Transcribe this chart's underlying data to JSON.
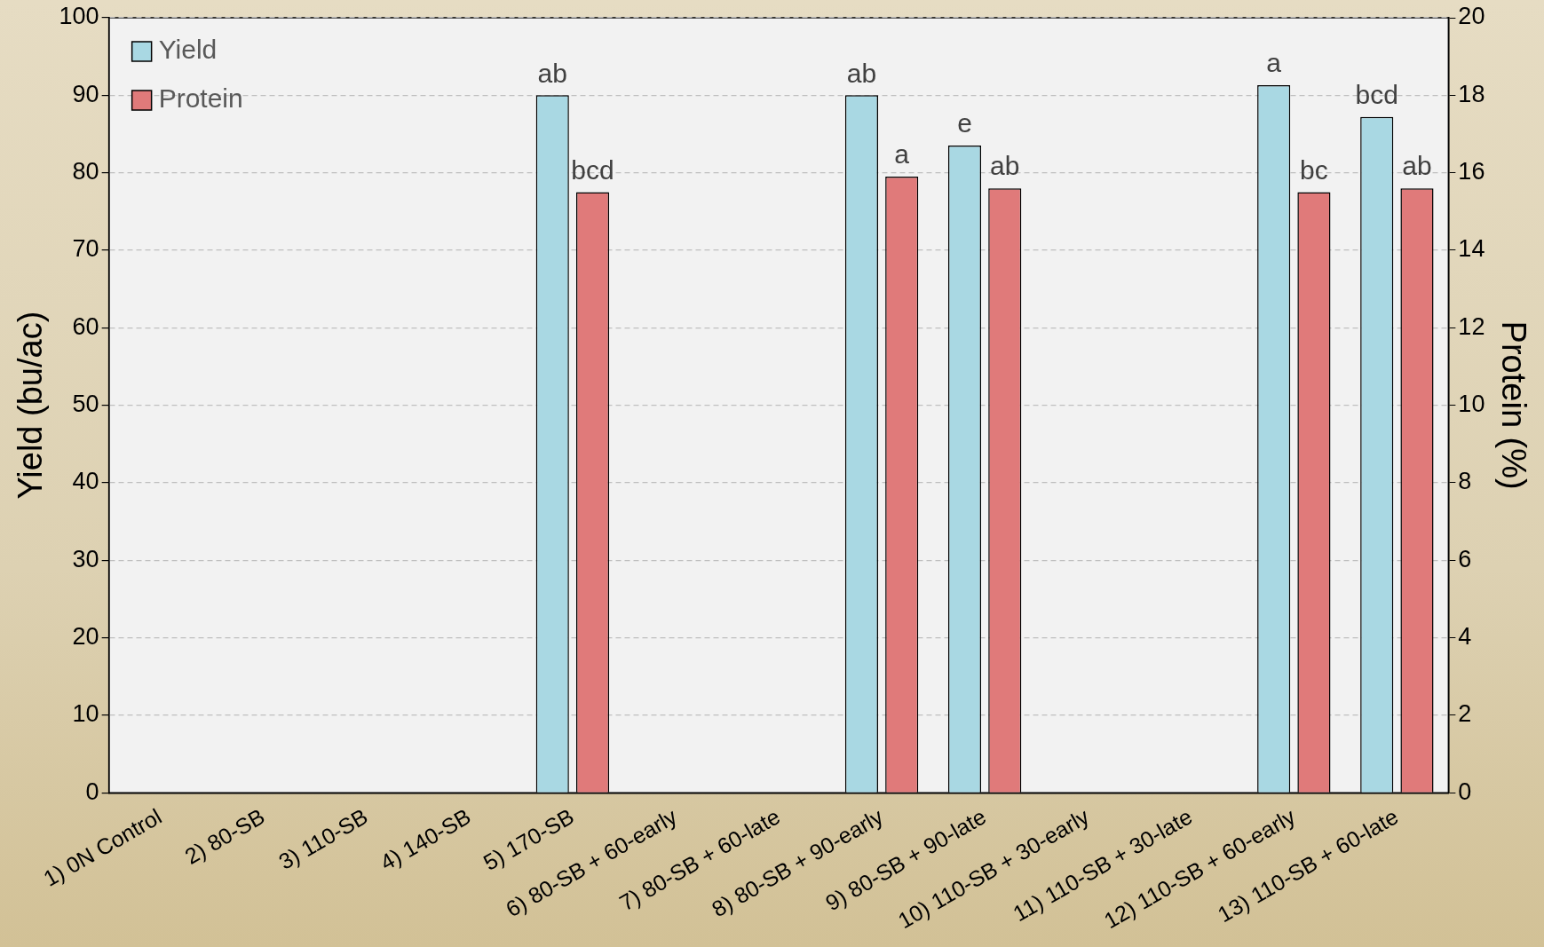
{
  "chart_data": {
    "type": "bar",
    "categories": [
      "1) 0N Control",
      "2) 80-SB",
      "3) 110-SB",
      "4) 140-SB",
      "5) 170-SB",
      "6) 80-SB + 60-early",
      "7) 80-SB + 60-late",
      "8) 80-SB + 90-early",
      "9) 80-SB + 90-late",
      "10) 110-SB + 30-early",
      "11) 110-SB + 30-late",
      "12) 110-SB + 60-early",
      "13) 110-SB + 60-late"
    ],
    "series": [
      {
        "name": "Yield",
        "color": "#a9d8e3",
        "values": [
          null,
          null,
          null,
          null,
          90,
          null,
          null,
          90,
          83.5,
          null,
          null,
          91.3,
          87.2
        ],
        "value_labels": [
          null,
          null,
          null,
          null,
          "ab",
          null,
          null,
          "ab",
          "e",
          null,
          null,
          "a",
          "bcd"
        ]
      },
      {
        "name": "Protein",
        "color": "#e07a7a",
        "axis": "y2",
        "values": [
          null,
          null,
          null,
          null,
          15.5,
          null,
          null,
          15.9,
          15.6,
          null,
          null,
          15.5,
          15.6
        ],
        "value_labels": [
          null,
          null,
          null,
          null,
          "bcd",
          null,
          null,
          "a",
          "ab",
          null,
          null,
          "bc",
          "ab"
        ]
      }
    ],
    "ylabel": "Yield (bu/ac)",
    "y2label": "Protein (%)",
    "ylim": [
      0,
      100
    ],
    "yticks": [
      0,
      10,
      20,
      30,
      40,
      50,
      60,
      70,
      80,
      90,
      100
    ],
    "y2lim": [
      0,
      20
    ],
    "y2ticks": [
      0,
      2,
      4,
      6,
      8,
      10,
      12,
      14,
      16,
      18,
      20
    ],
    "grid": "y",
    "legend": "top left"
  }
}
